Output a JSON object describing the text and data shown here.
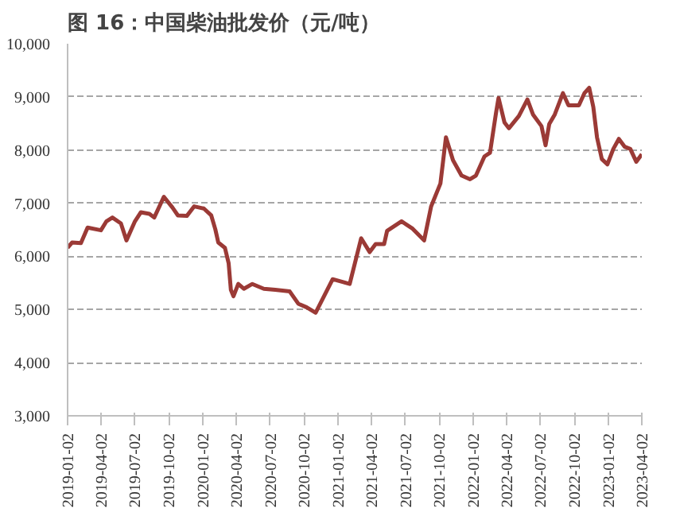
{
  "chart_data": {
    "type": "line",
    "title": "图 16：中国柴油批发价（元/吨）",
    "x": [
      "2019-01-02",
      "2019-01-14",
      "2019-02-07",
      "2019-02-25",
      "2019-04-02",
      "2019-04-17",
      "2019-05-03",
      "2019-05-26",
      "2019-06-10",
      "2019-07-03",
      "2019-07-19",
      "2019-08-11",
      "2019-08-24",
      "2019-09-19",
      "2019-10-12",
      "2019-10-27",
      "2019-11-20",
      "2019-12-10",
      "2020-01-05",
      "2020-01-25",
      "2020-02-05",
      "2020-02-13",
      "2020-03-02",
      "2020-03-12",
      "2020-03-18",
      "2020-03-25",
      "2020-04-07",
      "2020-04-22",
      "2020-05-15",
      "2020-06-15",
      "2020-07-16",
      "2020-08-24",
      "2020-09-16",
      "2020-10-09",
      "2020-11-02",
      "2020-12-18",
      "2021-02-02",
      "2021-03-05",
      "2021-03-28",
      "2021-04-13",
      "2021-05-06",
      "2021-05-14",
      "2021-06-22",
      "2021-07-22",
      "2021-08-22",
      "2021-09-10",
      "2021-10-05",
      "2021-10-20",
      "2021-11-08",
      "2021-12-01",
      "2021-12-24",
      "2022-01-09",
      "2022-02-01",
      "2022-02-16",
      "2022-03-04",
      "2022-03-11",
      "2022-03-27",
      "2022-04-08",
      "2022-05-05",
      "2022-05-28",
      "2022-06-12",
      "2022-07-05",
      "2022-07-16",
      "2022-07-26",
      "2022-08-10",
      "2022-09-01",
      "2022-09-16",
      "2022-10-14",
      "2022-10-29",
      "2022-11-11",
      "2022-11-22",
      "2022-12-02",
      "2022-12-15",
      "2022-12-30",
      "2023-01-15",
      "2023-01-30",
      "2023-02-15",
      "2023-03-02",
      "2023-03-18",
      "2023-04-02"
    ],
    "series": [
      {
        "color": "#9b3a36",
        "values": [
          6160,
          6260,
          6250,
          6540,
          6490,
          6660,
          6730,
          6620,
          6300,
          6660,
          6830,
          6800,
          6730,
          7120,
          6920,
          6770,
          6760,
          6940,
          6900,
          6770,
          6510,
          6260,
          6160,
          5870,
          5370,
          5250,
          5480,
          5390,
          5480,
          5390,
          5370,
          5340,
          5110,
          5040,
          4940,
          5570,
          5480,
          6340,
          6080,
          6230,
          6230,
          6480,
          6660,
          6520,
          6300,
          6940,
          7370,
          8240,
          7810,
          7520,
          7450,
          7520,
          7880,
          7950,
          8690,
          8980,
          8520,
          8410,
          8640,
          8950,
          8670,
          8450,
          8090,
          8490,
          8670,
          9070,
          8840,
          8840,
          9070,
          9170,
          8810,
          8240,
          7830,
          7730,
          8020,
          8210,
          8060,
          8020,
          7780,
          7920
        ]
      }
    ],
    "xlim": [
      "2019-01-02",
      "2023-04-02"
    ],
    "xticks": [
      "2019-01-02",
      "2019-04-02",
      "2019-07-02",
      "2019-10-02",
      "2020-01-02",
      "2020-04-02",
      "2020-07-02",
      "2020-10-02",
      "2021-01-02",
      "2021-04-02",
      "2021-07-02",
      "2021-10-02",
      "2022-01-02",
      "2022-04-02",
      "2022-07-02",
      "2022-10-02",
      "2023-01-02",
      "2023-04-02"
    ],
    "ylim": [
      3000,
      10000
    ],
    "yticks": [
      {
        "value": 3000,
        "label": "3,000"
      },
      {
        "value": 4000,
        "label": "4,000"
      },
      {
        "value": 5000,
        "label": "5,000"
      },
      {
        "value": 6000,
        "label": "6,000"
      },
      {
        "value": 7000,
        "label": "7,000"
      },
      {
        "value": 8000,
        "label": "8,000"
      },
      {
        "value": 9000,
        "label": "9,000"
      },
      {
        "value": 10000,
        "label": "10,000"
      }
    ],
    "grid": "y",
    "marker": "none",
    "line_style": "solid"
  }
}
